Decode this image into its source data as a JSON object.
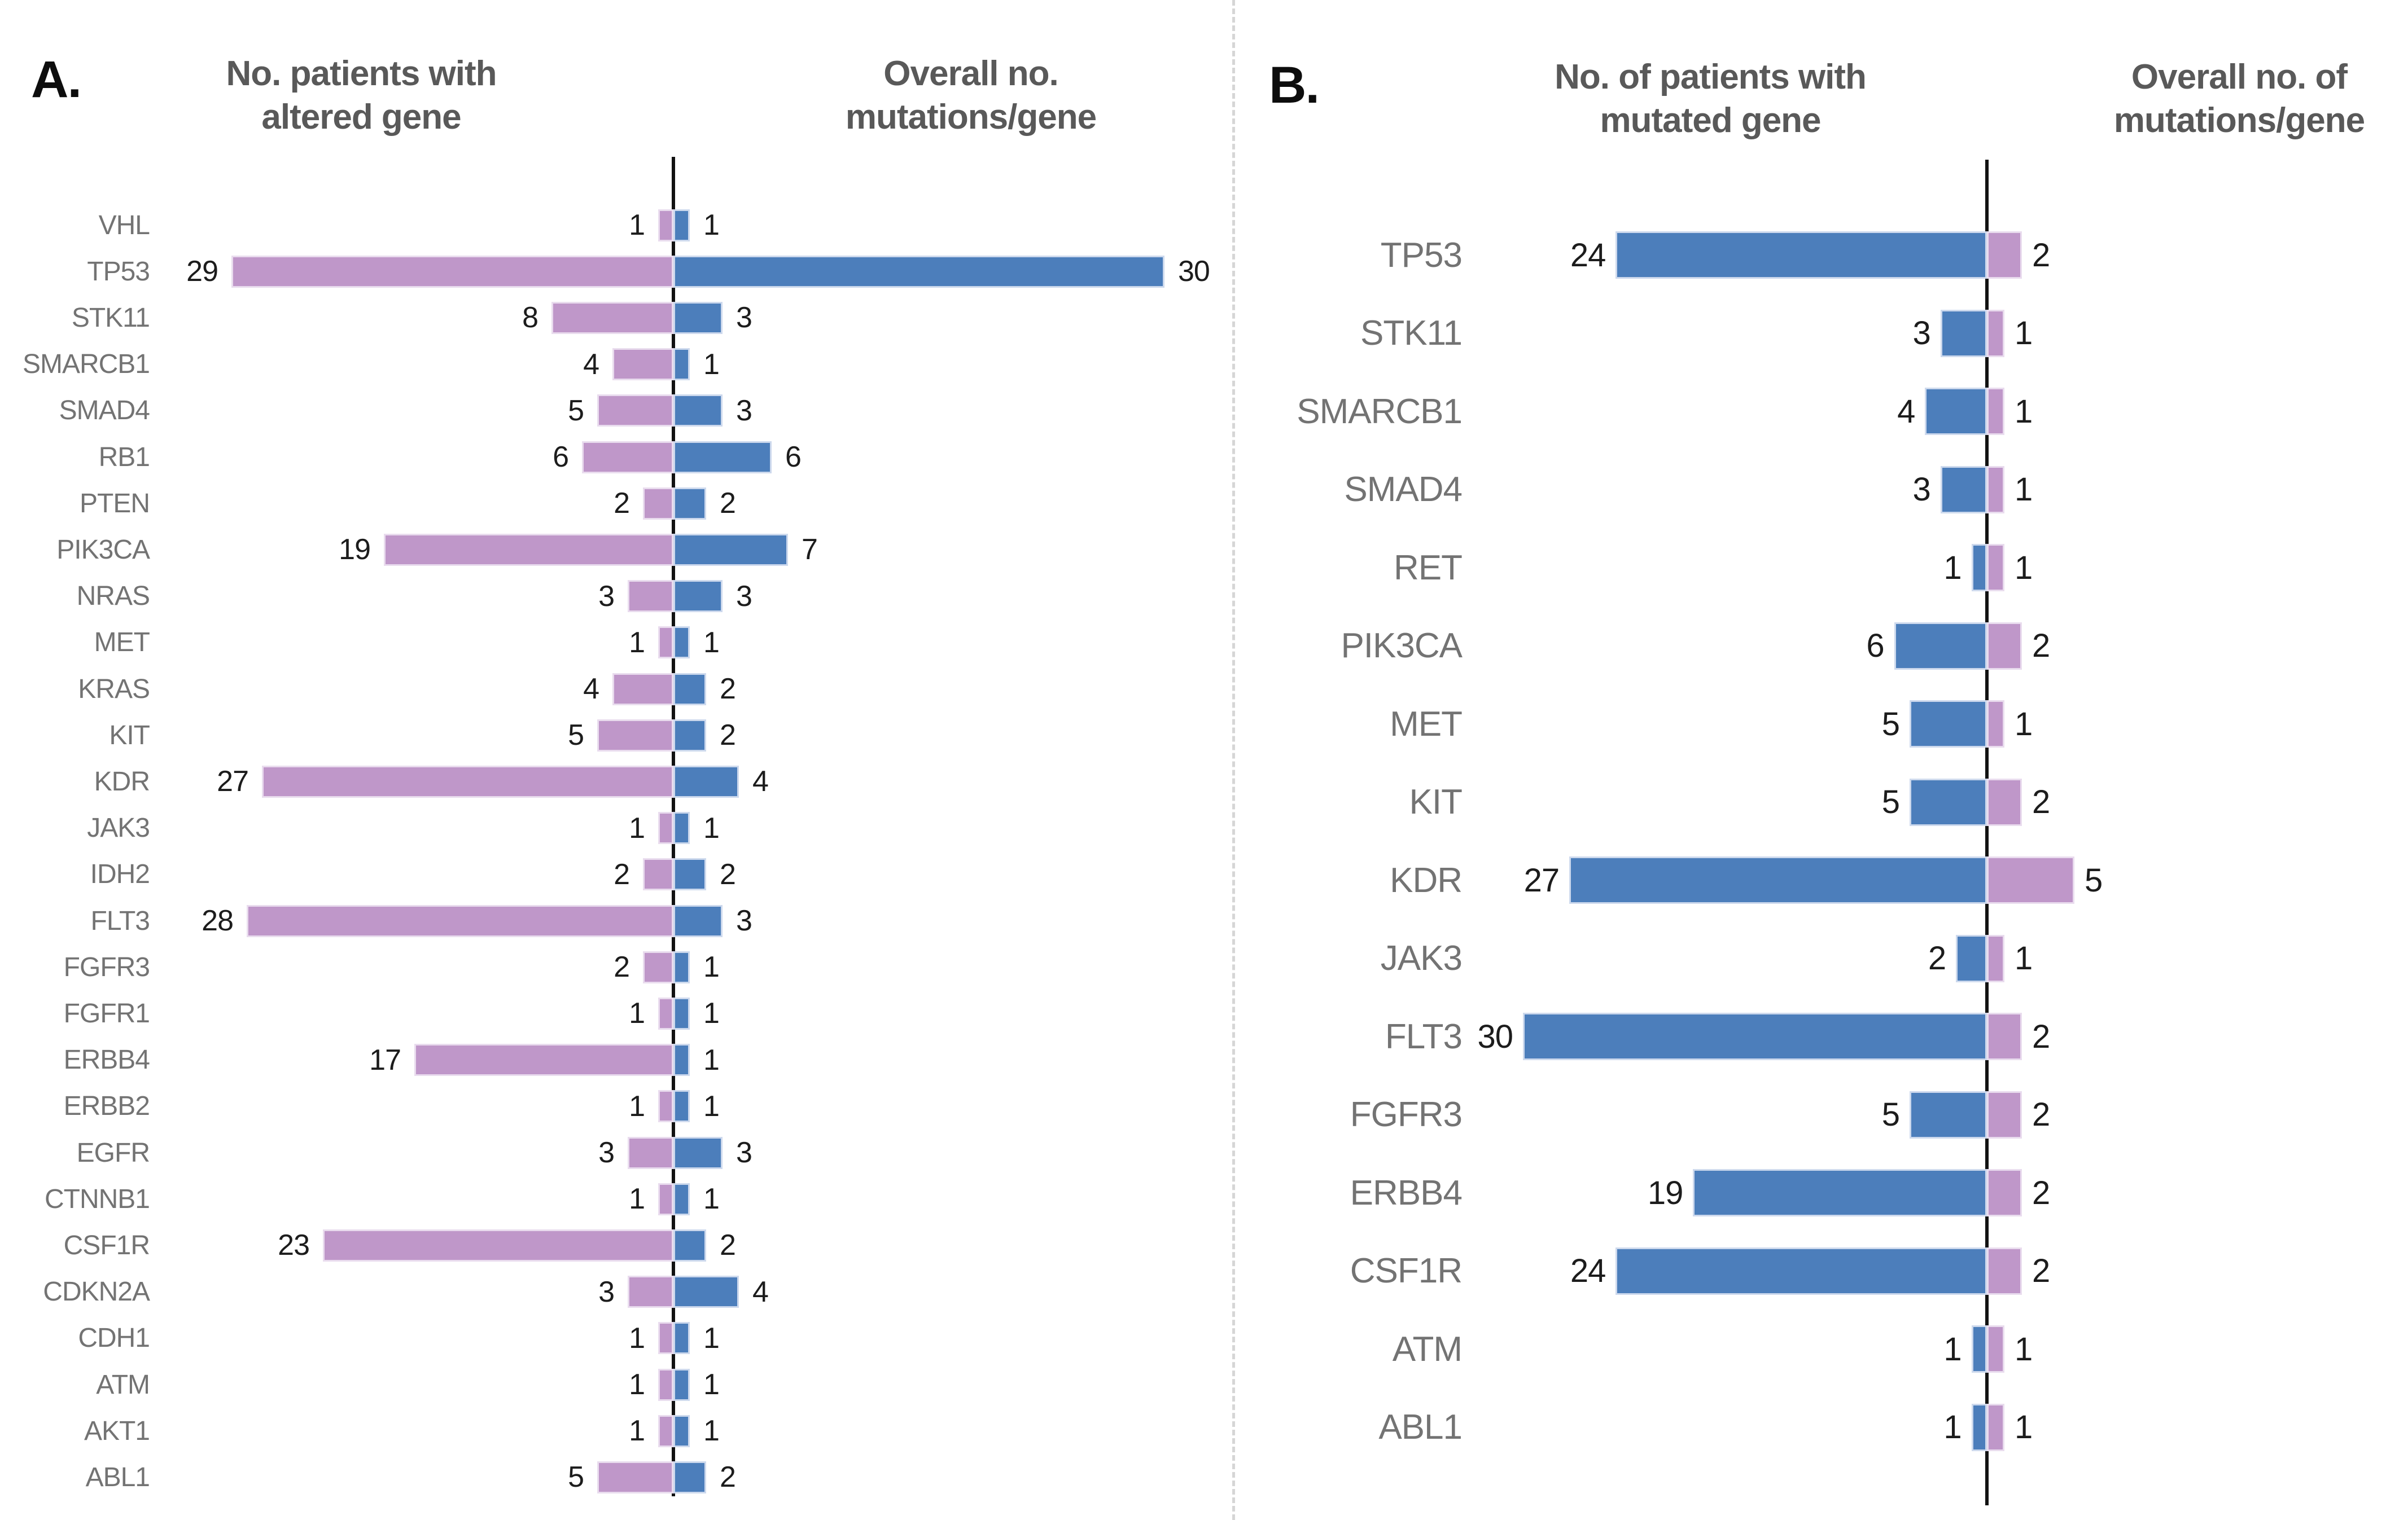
{
  "figure": {
    "divider_color": "#d6d6d6",
    "axis_color": "#121212",
    "title_color": "#595959",
    "gene_label_color": "#737373",
    "value_label_color": "#1c1c1c"
  },
  "chart_data": [
    {
      "panel": "A.",
      "type": "bar",
      "subtype": "butterfly",
      "title_left": "No. patients with\naltered gene",
      "title_right": "Overall no.\nmutations/gene",
      "grid": false,
      "value_labels": true,
      "series": [
        {
          "name": "No. patients with altered gene",
          "side": "left",
          "color": "#bf97c9",
          "border": "#e9dcee"
        },
        {
          "name": "Overall no. mutations/gene",
          "side": "right",
          "color": "#4c7ebb",
          "border": "#cdd9ed"
        }
      ],
      "categories": [
        "VHL",
        "TP53",
        "STK11",
        "SMARCB1",
        "SMAD4",
        "RB1",
        "PTEN",
        "PIK3CA",
        "NRAS",
        "MET",
        "KRAS",
        "KIT",
        "KDR",
        "JAK3",
        "IDH2",
        "FLT3",
        "FGFR3",
        "FGFR1",
        "ERBB4",
        "ERBB2",
        "EGFR",
        "CTNNB1",
        "CSF1R",
        "CDKN2A",
        "CDH1",
        "ATM",
        "AKT1",
        "ABL1"
      ],
      "left_values": [
        1,
        29,
        8,
        4,
        5,
        6,
        2,
        19,
        3,
        1,
        4,
        5,
        27,
        1,
        2,
        28,
        2,
        1,
        17,
        1,
        3,
        1,
        23,
        3,
        1,
        1,
        1,
        5
      ],
      "right_values": [
        1,
        30,
        3,
        1,
        3,
        6,
        2,
        7,
        3,
        1,
        2,
        2,
        4,
        1,
        2,
        3,
        1,
        1,
        1,
        1,
        3,
        1,
        2,
        4,
        1,
        1,
        1,
        2
      ],
      "xlim_left": [
        0,
        29
      ],
      "xlim_right": [
        0,
        30
      ]
    },
    {
      "panel": "B.",
      "type": "bar",
      "subtype": "butterfly",
      "title_left": "No. of patients with\nmutated gene",
      "title_right": "Overall no. of\nmutations/gene",
      "grid": false,
      "value_labels": true,
      "series": [
        {
          "name": "No. of patients with mutated gene",
          "side": "left",
          "color": "#4c7ebb",
          "border": "#cdd9ed"
        },
        {
          "name": "Overall no. of mutations/gene",
          "side": "right",
          "color": "#bf97c9",
          "border": "#e9dcee"
        }
      ],
      "categories": [
        "TP53",
        "STK11",
        "SMARCB1",
        "SMAD4",
        "RET",
        "PIK3CA",
        "MET",
        "KIT",
        "KDR",
        "JAK3",
        "FLT3",
        "FGFR3",
        "ERBB4",
        "CSF1R",
        "ATM",
        "ABL1"
      ],
      "left_values": [
        24,
        3,
        4,
        3,
        1,
        6,
        5,
        5,
        27,
        2,
        30,
        5,
        19,
        24,
        1,
        1
      ],
      "right_values": [
        2,
        1,
        1,
        1,
        1,
        2,
        1,
        2,
        5,
        1,
        2,
        2,
        2,
        2,
        1,
        1
      ],
      "xlim_left": [
        0,
        30
      ],
      "xlim_right": [
        0,
        5
      ]
    }
  ]
}
